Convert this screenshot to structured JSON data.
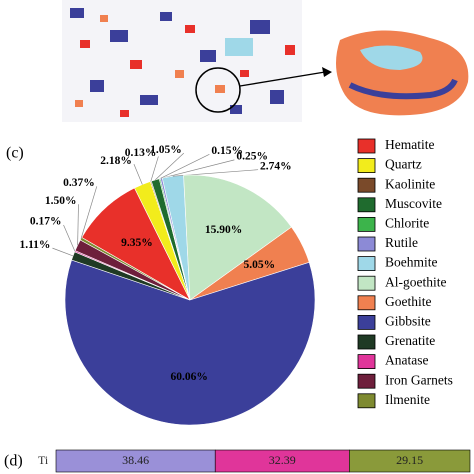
{
  "chart_data": [
    {
      "type": "pie",
      "panel_label": "(c)",
      "categories": [
        "Hematite",
        "Quartz",
        "Kaolinite",
        "Muscovite",
        "Chlorite",
        "Rutile",
        "Boehmite",
        "Al-goethite",
        "Goethite",
        "Gibbsite",
        "Grenatite",
        "Anatase",
        "Iron Garnets",
        "Ilmenite"
      ],
      "values": [
        9.35,
        2.18,
        0.13,
        1.05,
        0.15,
        0.25,
        2.74,
        15.9,
        5.05,
        60.06,
        1.11,
        0.17,
        1.5,
        0.37
      ],
      "value_labels": [
        "9.35%",
        "2.18%",
        "0.13%",
        "1.05%",
        "0.15%",
        "0.25%",
        "2.74%",
        "15.90%",
        "5.05%",
        "60.06%",
        "1.11%",
        "0.17%",
        "1.50%",
        "0.37%"
      ],
      "colors": [
        "#e8302a",
        "#f2ec1c",
        "#7a4a2a",
        "#1f6b2e",
        "#3cb44b",
        "#8c8ad6",
        "#9fd8e8",
        "#c2e6c4",
        "#f08050",
        "#3b3f9a",
        "#1f3a24",
        "#e0359a",
        "#6e1f3c",
        "#7e8a30"
      ]
    },
    {
      "type": "stacked-bar",
      "panel_label": "(d)",
      "categories": [
        "Ti"
      ],
      "xlim": [
        0,
        100
      ],
      "series": [
        {
          "color": "#9a90d8",
          "values": [
            38.46
          ]
        },
        {
          "color": "#e0359a",
          "values": [
            32.39
          ]
        },
        {
          "color": "#8a9a3a",
          "values": [
            29.15
          ]
        }
      ]
    }
  ]
}
